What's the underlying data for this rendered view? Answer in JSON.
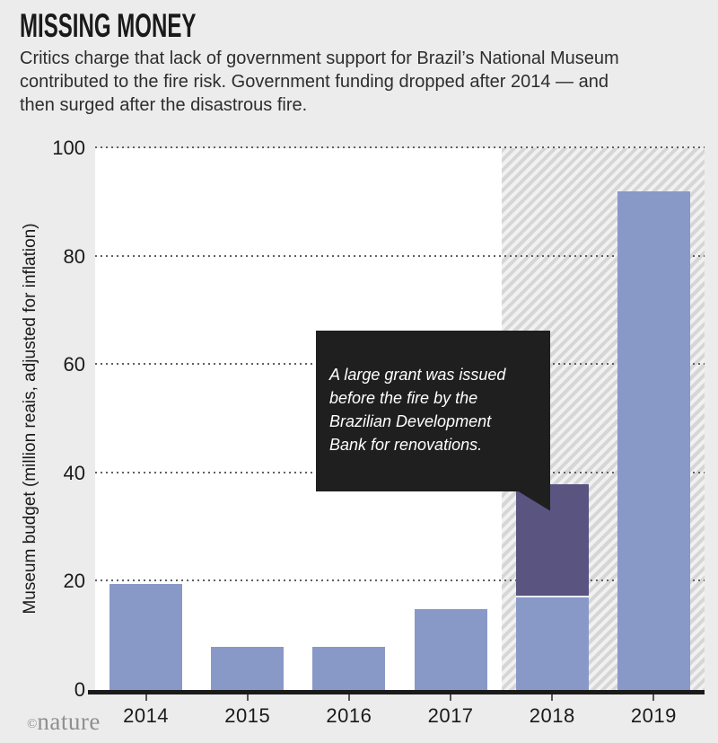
{
  "header": {
    "title": "MISSING MONEY",
    "subtitle": "Critics charge that lack of government support for Brazil’s National Museum contributed to the fire risk. Government funding dropped after 2014 — and then surged after the disastrous fire."
  },
  "annotation": {
    "text": "A large grant was issued\nbefore the fire by the\nBrazilian Development\nBank for renovations."
  },
  "footer": {
    "copyright_symbol": "©",
    "credit": "nature"
  },
  "colors": {
    "page_bg": "#ececec",
    "plot_bg": "#ffffff",
    "bar": "#8899c8",
    "grant_bar": "#595480",
    "stack_separator": "#eceef5",
    "annotation_bg": "#1f1f1f",
    "annotation_text": "#ffffff",
    "hatch_stripe": "#d6d6d6",
    "hatch_gap": "#f1f1f1",
    "axis": "#1a1a1a",
    "tick": "#555555",
    "gridline": "#606060"
  },
  "chart_data": {
    "type": "bar",
    "stacked": true,
    "title": "MISSING MONEY",
    "categories": [
      "2014",
      "2015",
      "2016",
      "2017",
      "2018",
      "2019"
    ],
    "series": [
      {
        "name": "Museum budget",
        "values": [
          19.5,
          8,
          8,
          15,
          17,
          92
        ],
        "color_key": "bar"
      },
      {
        "name": "Brazilian Development Bank grant",
        "values": [
          0,
          0,
          0,
          0,
          21,
          0
        ],
        "color_key": "grant_bar"
      }
    ],
    "xlabel": "",
    "ylabel": "Museum budget (million reais, adjusted for inflation)",
    "ylim": [
      0,
      100
    ],
    "yticks": [
      0,
      20,
      40,
      60,
      80,
      100
    ],
    "grid": "dotted-horizontal",
    "highlight_band": {
      "from_category": "2018",
      "to_category": "2019",
      "style": "diagonal-hatch"
    },
    "annotation": {
      "text": "A large grant was issued before the fire by the Brazilian Development Bank for renovations.",
      "points_to": "2018"
    }
  }
}
